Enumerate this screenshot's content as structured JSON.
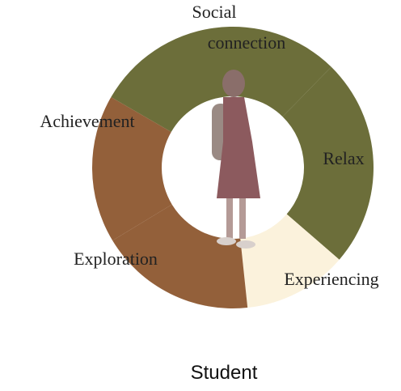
{
  "chart_data": {
    "type": "pie",
    "donut": true,
    "title": "Student",
    "categories": [
      "Social connection",
      "Relax",
      "Experiencing",
      "Exploration",
      "Achievement"
    ],
    "values": [
      29,
      24,
      12,
      18,
      17
    ],
    "colors": [
      "#6c6e3a",
      "#6c6e3a",
      "#fbf2dc",
      "#93603a",
      "#93603a"
    ]
  }
}
